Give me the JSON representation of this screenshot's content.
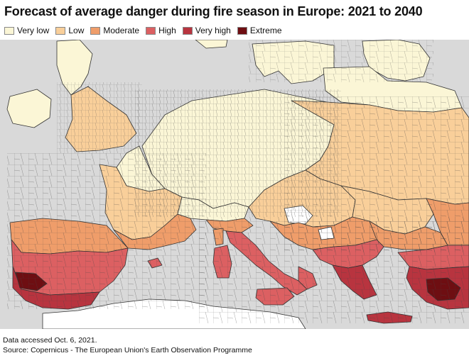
{
  "title": "Forecast of average danger during fire season in Europe: 2021 to 2040",
  "legend": [
    {
      "label": "Very low",
      "color": "#fbf6d6"
    },
    {
      "label": "Low",
      "color": "#f9cf9a"
    },
    {
      "label": "Moderate",
      "color": "#ef9d6a"
    },
    {
      "label": "High",
      "color": "#dc6062"
    },
    {
      "label": "Very high",
      "color": "#b8343f"
    },
    {
      "label": "Extreme",
      "color": "#6e0e12"
    }
  ],
  "colors": {
    "sea": "#d9d9d9",
    "no_data": "#ffffff",
    "border": "#333333"
  },
  "footer": {
    "note": "Data accessed Oct. 6, 2021.",
    "source": "Source: Copernicus - The European Union's Earth Observation Programme"
  }
}
